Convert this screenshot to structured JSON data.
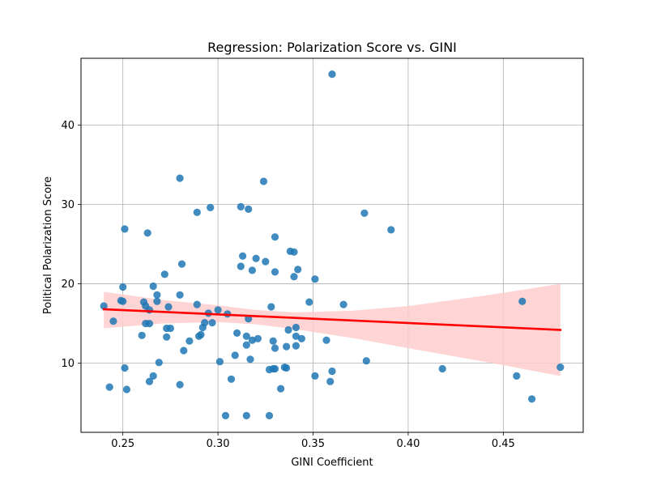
{
  "chart_data": {
    "type": "scatter",
    "title": "Regression: Polarization Score vs. GINI",
    "xlabel": "GINI Coefficient",
    "ylabel": "Political Polarization Score",
    "xlim": [
      0.228,
      0.492
    ],
    "ylim": [
      1.3,
      48.4
    ],
    "xticks": [
      0.25,
      0.3,
      0.35,
      0.4,
      0.45
    ],
    "xtick_labels": [
      "0.25",
      "0.30",
      "0.35",
      "0.40",
      "0.45"
    ],
    "yticks": [
      10,
      20,
      30,
      40
    ],
    "ytick_labels": [
      "10",
      "20",
      "30",
      "40"
    ],
    "grid": true,
    "point_color": "#1f77b4",
    "regression_color": "#ff0000",
    "ci_color": "#ffcccc",
    "regression": {
      "x_start": 0.24,
      "y_start": 16.8,
      "x_end": 0.48,
      "y_end": 14.2
    },
    "confidence_band": [
      {
        "x": 0.24,
        "lower": 14.4,
        "upper": 19.0
      },
      {
        "x": 0.27,
        "lower": 15.0,
        "upper": 18.0
      },
      {
        "x": 0.3,
        "lower": 15.2,
        "upper": 17.3
      },
      {
        "x": 0.32,
        "lower": 14.9,
        "upper": 16.7
      },
      {
        "x": 0.34,
        "lower": 14.3,
        "upper": 16.4
      },
      {
        "x": 0.37,
        "lower": 13.2,
        "upper": 16.6
      },
      {
        "x": 0.4,
        "lower": 11.9,
        "upper": 17.2
      },
      {
        "x": 0.44,
        "lower": 10.2,
        "upper": 18.5
      },
      {
        "x": 0.48,
        "lower": 8.4,
        "upper": 20.0
      }
    ],
    "points": [
      {
        "x": 0.24,
        "y": 17.2
      },
      {
        "x": 0.243,
        "y": 7.0
      },
      {
        "x": 0.245,
        "y": 15.3
      },
      {
        "x": 0.249,
        "y": 17.9
      },
      {
        "x": 0.25,
        "y": 19.6
      },
      {
        "x": 0.25,
        "y": 17.8
      },
      {
        "x": 0.251,
        "y": 26.9
      },
      {
        "x": 0.251,
        "y": 9.4
      },
      {
        "x": 0.252,
        "y": 6.7
      },
      {
        "x": 0.26,
        "y": 13.5
      },
      {
        "x": 0.261,
        "y": 17.7
      },
      {
        "x": 0.262,
        "y": 17.2
      },
      {
        "x": 0.262,
        "y": 15.0
      },
      {
        "x": 0.263,
        "y": 26.4
      },
      {
        "x": 0.264,
        "y": 16.7
      },
      {
        "x": 0.264,
        "y": 15.0
      },
      {
        "x": 0.264,
        "y": 7.7
      },
      {
        "x": 0.266,
        "y": 19.7
      },
      {
        "x": 0.266,
        "y": 8.4
      },
      {
        "x": 0.268,
        "y": 18.6
      },
      {
        "x": 0.268,
        "y": 17.8
      },
      {
        "x": 0.269,
        "y": 10.1
      },
      {
        "x": 0.272,
        "y": 21.2
      },
      {
        "x": 0.273,
        "y": 14.4
      },
      {
        "x": 0.273,
        "y": 13.3
      },
      {
        "x": 0.274,
        "y": 17.1
      },
      {
        "x": 0.275,
        "y": 14.4
      },
      {
        "x": 0.28,
        "y": 33.3
      },
      {
        "x": 0.28,
        "y": 18.6
      },
      {
        "x": 0.28,
        "y": 7.3
      },
      {
        "x": 0.281,
        "y": 22.5
      },
      {
        "x": 0.282,
        "y": 11.6
      },
      {
        "x": 0.285,
        "y": 12.8
      },
      {
        "x": 0.289,
        "y": 29.0
      },
      {
        "x": 0.289,
        "y": 17.4
      },
      {
        "x": 0.29,
        "y": 13.4
      },
      {
        "x": 0.291,
        "y": 13.6
      },
      {
        "x": 0.292,
        "y": 14.5
      },
      {
        "x": 0.293,
        "y": 15.1
      },
      {
        "x": 0.295,
        "y": 16.3
      },
      {
        "x": 0.296,
        "y": 29.6
      },
      {
        "x": 0.297,
        "y": 15.1
      },
      {
        "x": 0.3,
        "y": 16.7
      },
      {
        "x": 0.301,
        "y": 10.2
      },
      {
        "x": 0.304,
        "y": 3.4
      },
      {
        "x": 0.305,
        "y": 16.2
      },
      {
        "x": 0.307,
        "y": 8.0
      },
      {
        "x": 0.309,
        "y": 11.0
      },
      {
        "x": 0.31,
        "y": 13.8
      },
      {
        "x": 0.312,
        "y": 29.7
      },
      {
        "x": 0.312,
        "y": 22.2
      },
      {
        "x": 0.313,
        "y": 23.5
      },
      {
        "x": 0.315,
        "y": 13.4
      },
      {
        "x": 0.315,
        "y": 12.3
      },
      {
        "x": 0.315,
        "y": 3.4
      },
      {
        "x": 0.316,
        "y": 29.4
      },
      {
        "x": 0.316,
        "y": 15.6
      },
      {
        "x": 0.317,
        "y": 10.5
      },
      {
        "x": 0.318,
        "y": 21.7
      },
      {
        "x": 0.318,
        "y": 12.9
      },
      {
        "x": 0.32,
        "y": 23.2
      },
      {
        "x": 0.321,
        "y": 13.1
      },
      {
        "x": 0.324,
        "y": 32.9
      },
      {
        "x": 0.325,
        "y": 22.8
      },
      {
        "x": 0.327,
        "y": 9.2
      },
      {
        "x": 0.327,
        "y": 3.4
      },
      {
        "x": 0.328,
        "y": 17.1
      },
      {
        "x": 0.329,
        "y": 12.8
      },
      {
        "x": 0.329,
        "y": 9.3
      },
      {
        "x": 0.33,
        "y": 25.9
      },
      {
        "x": 0.33,
        "y": 21.5
      },
      {
        "x": 0.33,
        "y": 11.9
      },
      {
        "x": 0.33,
        "y": 9.3
      },
      {
        "x": 0.333,
        "y": 6.8
      },
      {
        "x": 0.335,
        "y": 9.5
      },
      {
        "x": 0.336,
        "y": 12.1
      },
      {
        "x": 0.336,
        "y": 9.4
      },
      {
        "x": 0.337,
        "y": 14.2
      },
      {
        "x": 0.338,
        "y": 24.1
      },
      {
        "x": 0.34,
        "y": 24.0
      },
      {
        "x": 0.34,
        "y": 20.9
      },
      {
        "x": 0.341,
        "y": 14.5
      },
      {
        "x": 0.341,
        "y": 13.4
      },
      {
        "x": 0.341,
        "y": 12.2
      },
      {
        "x": 0.342,
        "y": 21.8
      },
      {
        "x": 0.344,
        "y": 13.1
      },
      {
        "x": 0.348,
        "y": 17.7
      },
      {
        "x": 0.351,
        "y": 20.6
      },
      {
        "x": 0.351,
        "y": 8.4
      },
      {
        "x": 0.357,
        "y": 12.9
      },
      {
        "x": 0.359,
        "y": 7.7
      },
      {
        "x": 0.36,
        "y": 46.4
      },
      {
        "x": 0.36,
        "y": 9.0
      },
      {
        "x": 0.366,
        "y": 17.4
      },
      {
        "x": 0.377,
        "y": 28.9
      },
      {
        "x": 0.378,
        "y": 10.3
      },
      {
        "x": 0.391,
        "y": 26.8
      },
      {
        "x": 0.418,
        "y": 9.3
      },
      {
        "x": 0.457,
        "y": 8.4
      },
      {
        "x": 0.46,
        "y": 17.8
      },
      {
        "x": 0.465,
        "y": 5.5
      },
      {
        "x": 0.48,
        "y": 9.5
      }
    ]
  }
}
